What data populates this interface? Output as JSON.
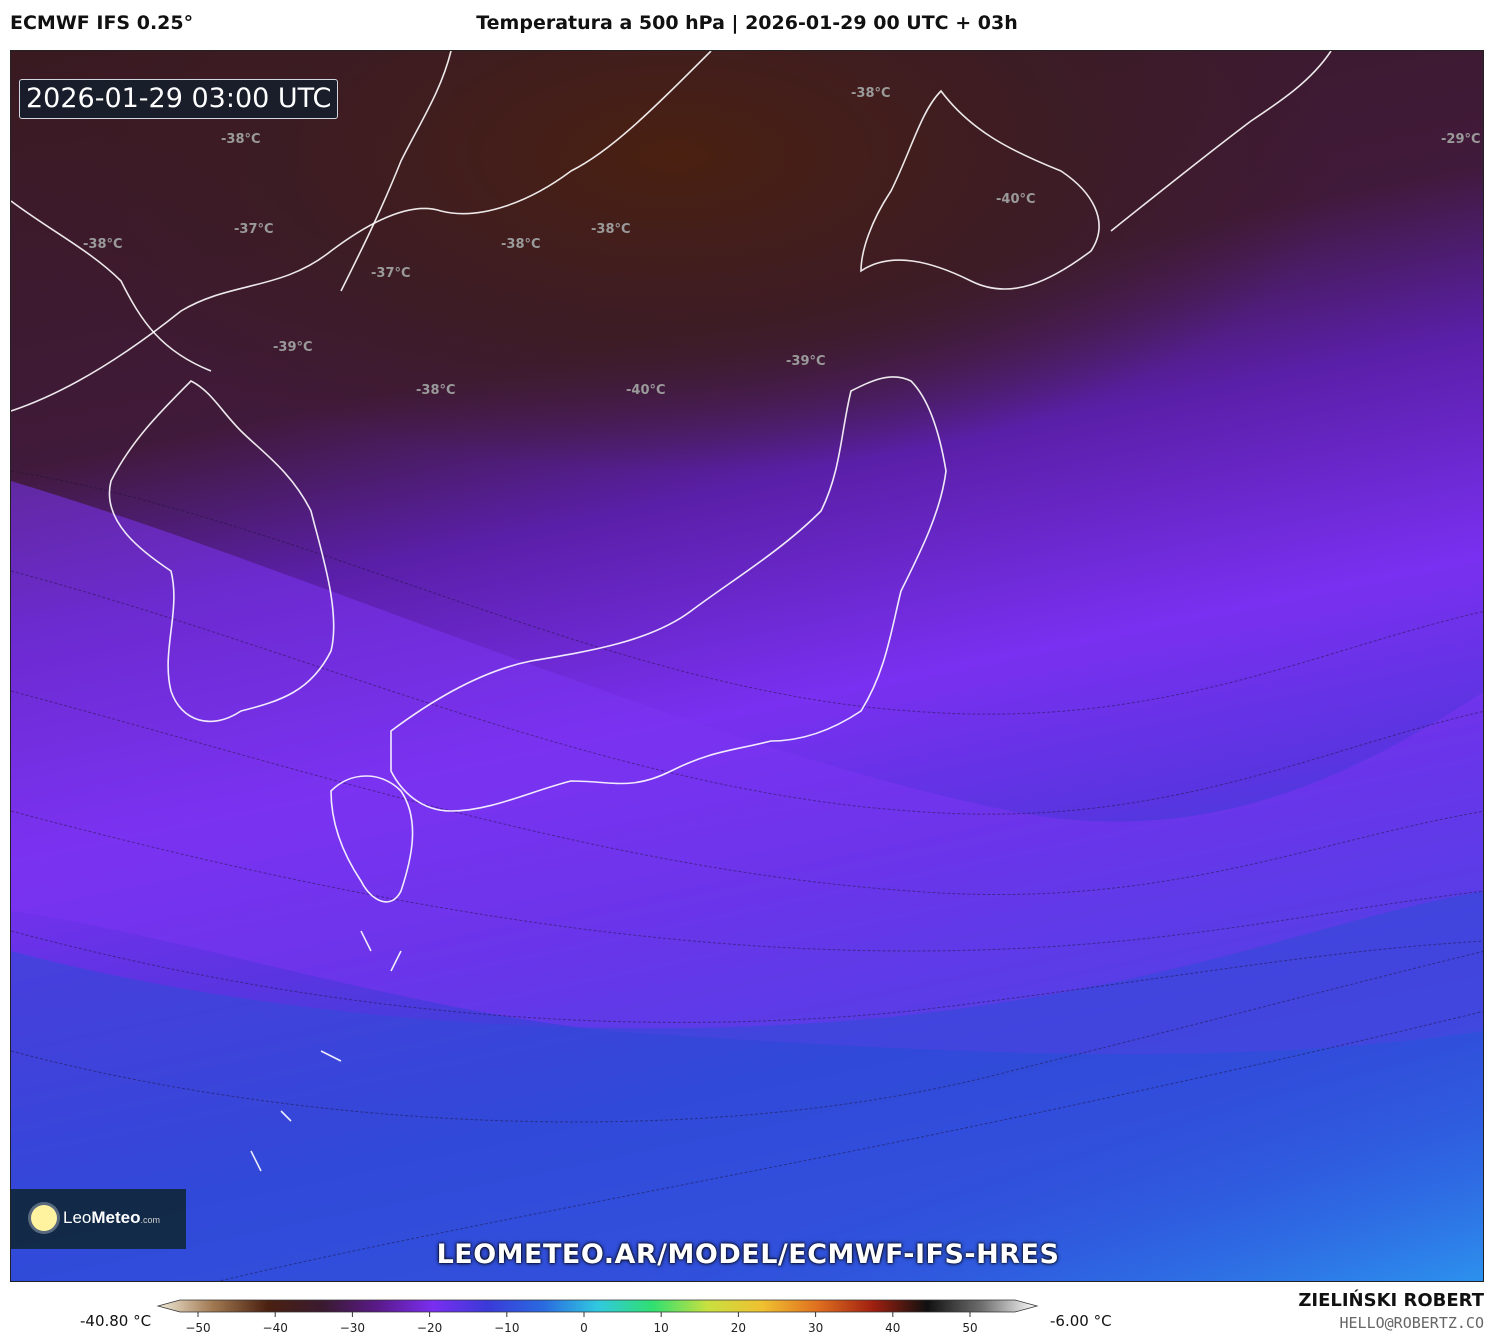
{
  "header": {
    "model": "ECMWF IFS 0.25°",
    "title": "Temperatura a 500 hPa | 2026-01-29 00 UTC + 03h"
  },
  "map": {
    "valid_time": "2026-01-29 03:00 UTC",
    "isotherm_labels": [
      "-38°C",
      "-29°C",
      "-38°C",
      "-40°C",
      "-37°C",
      "-38°C",
      "-38°C",
      "-38°C",
      "-37°C",
      "-39°C",
      "-39°C",
      "-38°C",
      "-40°C"
    ],
    "watermark_url": "LEOMETEO.AR/MODEL/ECMWF-IFS-HRES",
    "logo": {
      "brand_light": "Leo",
      "brand_bold": "Meteo",
      "suffix": ".com"
    }
  },
  "colorbar": {
    "min_label": "-40.80 °C",
    "max_label": "-6.00 °C",
    "ticks": [
      "−50",
      "−40",
      "−30",
      "−20",
      "−10",
      "0",
      "10",
      "20",
      "30",
      "40",
      "50"
    ],
    "colors": [
      "#f0ead8",
      "#a07850",
      "#4a2010",
      "#3a1a30",
      "#5a1a8a",
      "#7a2ef0",
      "#3a3ad8",
      "#2a6ae0",
      "#30c8e0",
      "#30e070",
      "#c8e040",
      "#f0c030",
      "#e07020",
      "#a02010",
      "#101010",
      "#707070",
      "#ffffff"
    ]
  },
  "credits": {
    "author": "ZIELIŃSKI ROBERT",
    "email": "HELLO@ROBERTZ.CO"
  }
}
